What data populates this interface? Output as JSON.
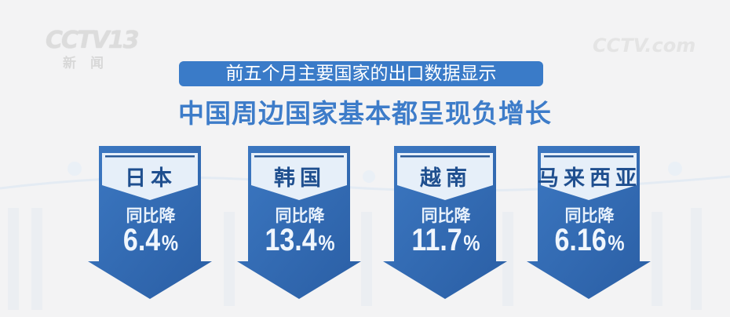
{
  "watermarks": {
    "left_logo": "CCTV 13",
    "left_logo_sub": "新闻",
    "right_logo": "CCTV.com"
  },
  "subtitle": "前五个月主要国家的出口数据显示",
  "headline": "中国周边国家基本都呈现负增长",
  "colors": {
    "accent": "#3a7bc8",
    "arrow": "#2f66ad",
    "arrow_header": "#e6eff9",
    "country_text": "#1f4f8f"
  },
  "cards": [
    {
      "country": "日本",
      "label": "同比降",
      "value": "6.4",
      "unit": "%"
    },
    {
      "country": "韩国",
      "label": "同比降",
      "value": "13.4",
      "unit": "%"
    },
    {
      "country": "越南",
      "label": "同比降",
      "value": "11.7",
      "unit": "%"
    },
    {
      "country": "马来西亚",
      "label": "同比降",
      "value": "6.16",
      "unit": "%"
    }
  ]
}
